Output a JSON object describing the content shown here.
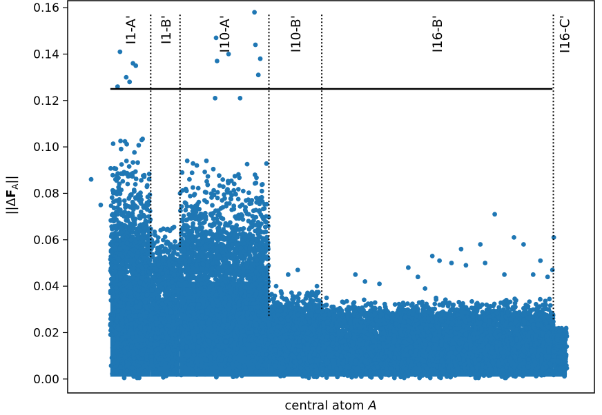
{
  "chart_data": {
    "type": "scatter",
    "title": "",
    "xlabel": "central atom",
    "xlabel_italic": "A",
    "ylabel": "||ΔF_A||",
    "ylabel_parts": {
      "prefix": "||Δ",
      "bold": "F",
      "sub": "A",
      "suffix": "||"
    },
    "ylim": [
      -0.006,
      0.163
    ],
    "xlim": [
      0,
      1
    ],
    "yticks": [
      "0.00",
      "0.02",
      "0.04",
      "0.06",
      "0.08",
      "0.10",
      "0.12",
      "0.14",
      "0.16"
    ],
    "ytick_values": [
      0.0,
      0.02,
      0.04,
      0.06,
      0.08,
      0.1,
      0.12,
      0.14,
      0.16
    ],
    "grid": false,
    "legend": "none",
    "colors": {
      "points": "#1f77b4",
      "lines": "#000000"
    },
    "threshold": {
      "y": 0.125,
      "x_range": [
        0.04,
        0.96
      ]
    },
    "boundaries": [
      {
        "x": 0.124,
        "y_low": 0.052
      },
      {
        "x": 0.185,
        "y_low": 0.057
      },
      {
        "x": 0.37,
        "y_low": 0.027
      },
      {
        "x": 0.48,
        "y_low": 0.03
      },
      {
        "x": 0.962,
        "y_low": 0.025
      }
    ],
    "regions": [
      {
        "label": "I1-A'",
        "x": 0.082
      },
      {
        "label": "I1-B'",
        "x": 0.155
      },
      {
        "label": "I10-A'",
        "x": 0.277
      },
      {
        "label": "I10-B'",
        "x": 0.425
      },
      {
        "label": "I16-B'",
        "x": 0.72
      },
      {
        "label": "I16-C'",
        "x": 0.985
      }
    ],
    "segments": [
      {
        "x": [
          0.04,
          0.124
        ],
        "base_max": 0.06,
        "peak_max": 0.105,
        "count": 1500
      },
      {
        "x": [
          0.124,
          0.185
        ],
        "base_max": 0.05,
        "peak_max": 0.07,
        "count": 700
      },
      {
        "x": [
          0.185,
          0.37
        ],
        "base_max": 0.06,
        "peak_max": 0.095,
        "count": 2200
      },
      {
        "x": [
          0.37,
          0.48
        ],
        "base_max": 0.03,
        "peak_max": 0.04,
        "count": 1100
      },
      {
        "x": [
          0.48,
          0.962
        ],
        "base_max": 0.028,
        "peak_max": 0.035,
        "count": 4200
      },
      {
        "x": [
          0.962,
          0.99
        ],
        "base_max": 0.022,
        "peak_max": 0.022,
        "count": 200
      }
    ],
    "outliers": [
      {
        "x": 0.06,
        "y": 0.141
      },
      {
        "x": 0.087,
        "y": 0.136
      },
      {
        "x": 0.093,
        "y": 0.135
      },
      {
        "x": 0.073,
        "y": 0.13
      },
      {
        "x": 0.055,
        "y": 0.126
      },
      {
        "x": 0.08,
        "y": 0.128
      },
      {
        "x": 0.34,
        "y": 0.158
      },
      {
        "x": 0.352,
        "y": 0.138
      },
      {
        "x": 0.342,
        "y": 0.144
      },
      {
        "x": 0.26,
        "y": 0.147
      },
      {
        "x": 0.286,
        "y": 0.14
      },
      {
        "x": 0.262,
        "y": 0.137
      },
      {
        "x": 0.348,
        "y": 0.131
      },
      {
        "x": 0.31,
        "y": 0.121
      },
      {
        "x": 0.258,
        "y": 0.121
      },
      {
        "x": 0.22,
        "y": 0.092
      },
      {
        "x": 0.24,
        "y": 0.094
      },
      {
        "x": 0.2,
        "y": 0.094
      },
      {
        "x": 0.0,
        "y": 0.086
      },
      {
        "x": 0.02,
        "y": 0.075
      },
      {
        "x": 0.12,
        "y": 0.07
      },
      {
        "x": 0.84,
        "y": 0.071
      },
      {
        "x": 0.77,
        "y": 0.056
      },
      {
        "x": 0.88,
        "y": 0.061
      },
      {
        "x": 0.9,
        "y": 0.058
      },
      {
        "x": 0.81,
        "y": 0.058
      },
      {
        "x": 0.963,
        "y": 0.061
      },
      {
        "x": 0.725,
        "y": 0.051
      },
      {
        "x": 0.75,
        "y": 0.05
      },
      {
        "x": 0.71,
        "y": 0.053
      },
      {
        "x": 0.935,
        "y": 0.051
      },
      {
        "x": 0.82,
        "y": 0.05
      },
      {
        "x": 0.78,
        "y": 0.049
      },
      {
        "x": 0.43,
        "y": 0.047
      },
      {
        "x": 0.41,
        "y": 0.045
      },
      {
        "x": 0.55,
        "y": 0.045
      },
      {
        "x": 0.66,
        "y": 0.048
      },
      {
        "x": 0.57,
        "y": 0.042
      },
      {
        "x": 0.6,
        "y": 0.041
      },
      {
        "x": 0.68,
        "y": 0.044
      },
      {
        "x": 0.86,
        "y": 0.045
      },
      {
        "x": 0.92,
        "y": 0.045
      },
      {
        "x": 0.95,
        "y": 0.044
      },
      {
        "x": 0.96,
        "y": 0.047
      },
      {
        "x": 0.695,
        "y": 0.039
      },
      {
        "x": 0.385,
        "y": 0.04
      },
      {
        "x": 0.47,
        "y": 0.04
      },
      {
        "x": 0.49,
        "y": 0.035
      }
    ]
  }
}
